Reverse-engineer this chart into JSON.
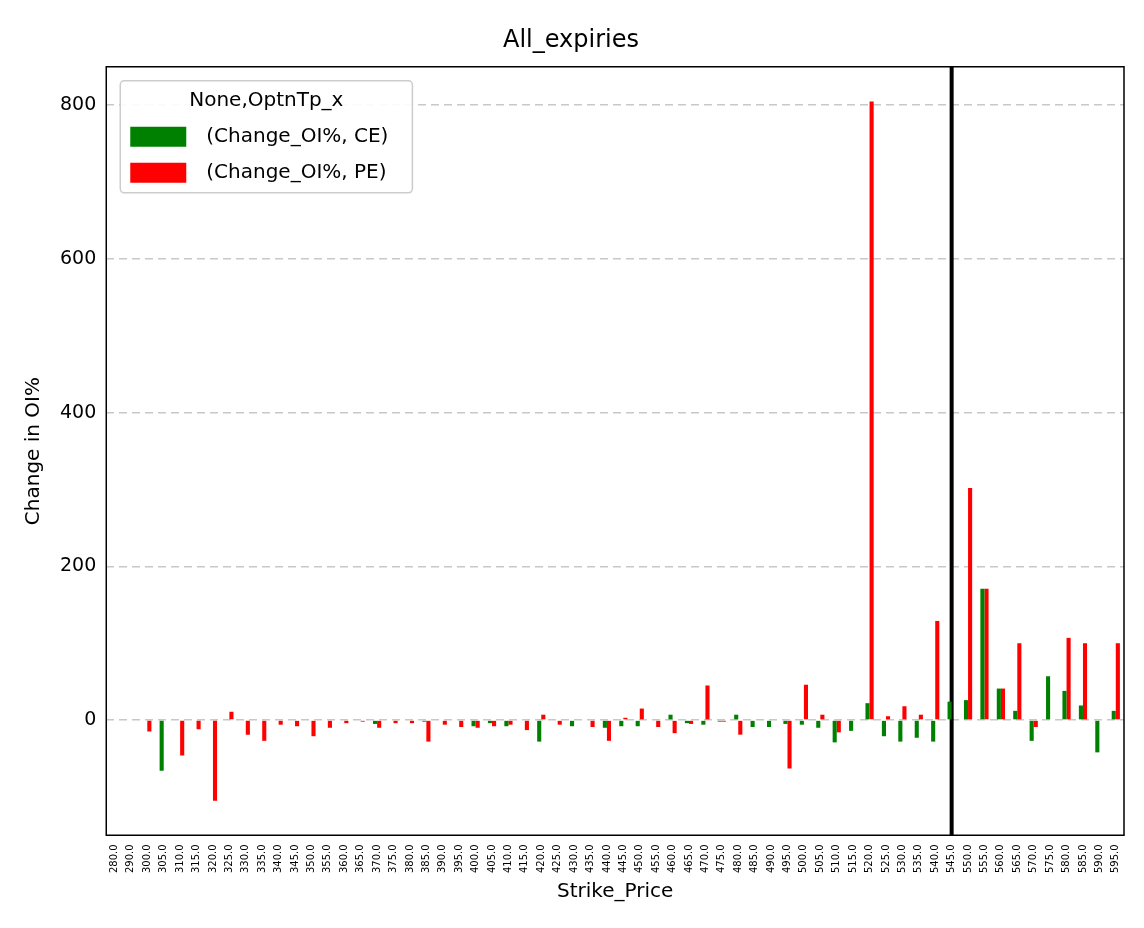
{
  "chart_data": {
    "type": "bar",
    "title": "All_expiries",
    "xlabel": "Strike_Price",
    "ylabel": "Change in OI%",
    "legend_title": "None,OptnTp_x",
    "categories": [
      "280.0",
      "290.0",
      "300.0",
      "305.0",
      "310.0",
      "315.0",
      "320.0",
      "325.0",
      "330.0",
      "335.0",
      "340.0",
      "345.0",
      "350.0",
      "355.0",
      "360.0",
      "365.0",
      "370.0",
      "375.0",
      "380.0",
      "385.0",
      "390.0",
      "395.0",
      "400.0",
      "405.0",
      "410.0",
      "415.0",
      "420.0",
      "425.0",
      "430.0",
      "435.0",
      "440.0",
      "445.0",
      "450.0",
      "455.0",
      "460.0",
      "465.0",
      "470.0",
      "475.0",
      "480.0",
      "485.0",
      "490.0",
      "495.0",
      "500.0",
      "505.0",
      "510.0",
      "515.0",
      "520.0",
      "525.0",
      "530.0",
      "535.0",
      "540.0",
      "545.0",
      "550.0",
      "555.0",
      "560.0",
      "565.0",
      "570.0",
      "575.0",
      "580.0",
      "585.0",
      "590.0",
      "595.0"
    ],
    "series": [
      {
        "name": "(Change_OI%, CE)",
        "color": "#008000",
        "values": [
          null,
          null,
          null,
          -66,
          null,
          null,
          null,
          null,
          null,
          null,
          null,
          null,
          null,
          null,
          null,
          null,
          -5,
          null,
          null,
          -2,
          null,
          null,
          -8,
          -4,
          -8,
          null,
          -28,
          null,
          -8,
          null,
          -10,
          -8,
          -8,
          null,
          7,
          -4,
          -6,
          -2,
          7,
          -9,
          -9,
          -5,
          -6,
          -10,
          -29,
          -14,
          22,
          -21,
          -28,
          -23,
          -28,
          24,
          26,
          171,
          41,
          12,
          -27,
          57,
          38,
          19,
          -42,
          12
        ]
      },
      {
        "name": "(Change_OI%, PE)",
        "color": "#ff0000",
        "values": [
          null,
          null,
          -15,
          null,
          -46,
          -12,
          -105,
          11,
          -19,
          -27,
          -6,
          -8,
          -21,
          -10,
          -4,
          -2,
          -10,
          -4,
          -4,
          -28,
          -6,
          -9,
          -10,
          -8,
          -6,
          -13,
          7,
          -6,
          null,
          -9,
          -27,
          3,
          15,
          -9,
          -17,
          -5,
          45,
          -2,
          -19,
          null,
          null,
          -63,
          46,
          7,
          -16,
          null,
          805,
          5,
          18,
          7,
          129,
          null,
          302,
          171,
          41,
          100,
          -9,
          null,
          107,
          100,
          null,
          100
        ]
      }
    ],
    "ylim": [
      -150,
      850
    ],
    "yticks": [
      0,
      200,
      400,
      600,
      800
    ],
    "grid": "y",
    "legend": "top left",
    "ref_lines": [
      {
        "axis": "x",
        "value": "545.0",
        "color": "#000000"
      }
    ]
  }
}
